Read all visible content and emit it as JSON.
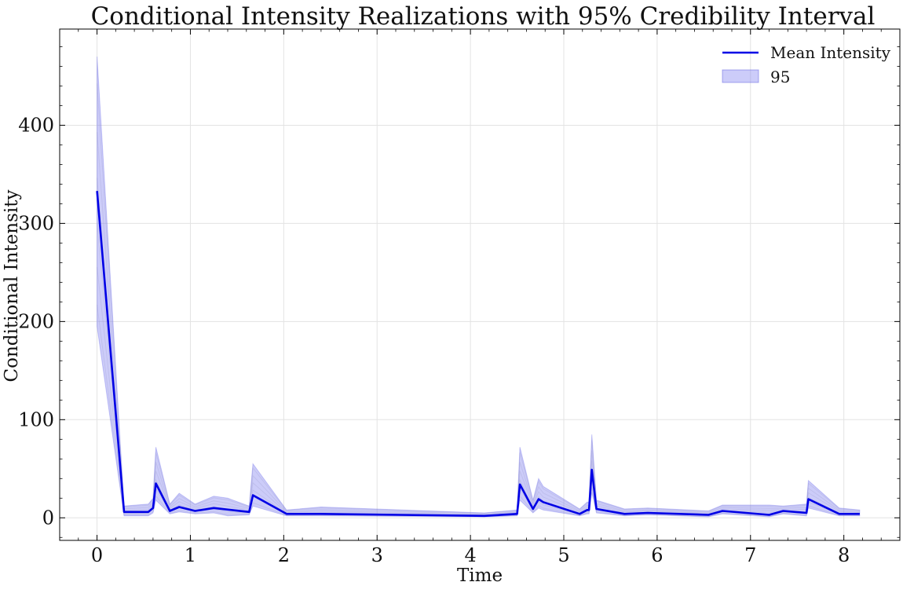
{
  "chart_data": {
    "type": "line",
    "title": "Conditional Intensity Realizations with 95% Credibility Interval",
    "xlabel": "Time",
    "ylabel": "Conditional Intensity",
    "xlim": [
      -0.4,
      8.6
    ],
    "ylim": [
      -23,
      498
    ],
    "xticks": [
      0,
      1,
      2,
      3,
      4,
      5,
      6,
      7,
      8
    ],
    "xtick_labels": [
      "0",
      "1",
      "2",
      "3",
      "4",
      "5",
      "6",
      "7",
      "8"
    ],
    "yticks": [
      0,
      100,
      200,
      300,
      400
    ],
    "ytick_labels": [
      "0",
      "100",
      "200",
      "300",
      "400"
    ],
    "grid": true,
    "legend": {
      "placement": "top-right",
      "entries": [
        "Mean Intensity",
        "95"
      ]
    },
    "colors": {
      "mean": "#0000e6",
      "band": "#8080f0",
      "realizations": "#8a8a8a"
    },
    "series": [
      {
        "name": "Mean Intensity",
        "x": [
          0.0,
          0.29,
          0.55,
          0.6,
          0.63,
          0.78,
          0.88,
          1.05,
          1.25,
          1.63,
          1.67,
          2.03,
          2.4,
          4.15,
          4.5,
          4.53,
          4.67,
          4.73,
          4.78,
          5.17,
          5.25,
          5.27,
          5.3,
          5.35,
          5.65,
          5.9,
          6.55,
          6.7,
          7.2,
          7.35,
          7.6,
          7.62,
          7.95,
          8.17
        ],
        "values": [
          333,
          6,
          6,
          10,
          35,
          7,
          11,
          7,
          10,
          6,
          23,
          4,
          4,
          2,
          4,
          34,
          9,
          19,
          16,
          4,
          8,
          8,
          49,
          9,
          4,
          5,
          3,
          7,
          3,
          7,
          5,
          19,
          4,
          4
        ]
      },
      {
        "name": "95",
        "x": [
          0.0,
          0.29,
          0.55,
          0.6,
          0.63,
          0.78,
          0.88,
          1.05,
          1.25,
          1.4,
          1.63,
          1.67,
          2.03,
          2.4,
          4.15,
          4.5,
          4.53,
          4.67,
          4.73,
          4.78,
          5.17,
          5.25,
          5.27,
          5.3,
          5.35,
          5.65,
          5.9,
          6.55,
          6.7,
          7.2,
          7.35,
          7.6,
          7.62,
          7.95,
          8.17
        ],
        "lower": [
          195,
          2,
          2,
          5,
          18,
          4,
          6,
          4,
          5,
          2,
          3,
          12,
          2,
          2,
          1,
          2,
          18,
          5,
          10,
          8,
          2,
          4,
          4,
          26,
          5,
          2,
          3,
          1,
          4,
          1,
          4,
          2,
          10,
          2,
          2
        ],
        "upper": [
          470,
          12,
          14,
          20,
          72,
          14,
          25,
          14,
          22,
          20,
          12,
          55,
          8,
          11,
          5,
          8,
          72,
          18,
          40,
          32,
          9,
          16,
          16,
          85,
          18,
          9,
          10,
          7,
          13,
          13,
          12,
          14,
          38,
          10,
          8
        ]
      }
    ]
  }
}
